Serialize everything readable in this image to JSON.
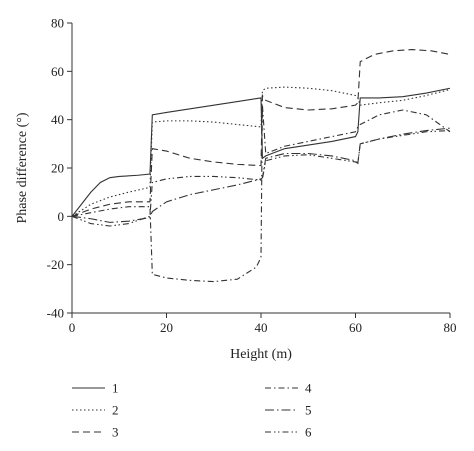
{
  "chart_data": {
    "type": "line",
    "xlabel": "Height (m)",
    "ylabel": "Phase difference (°)",
    "xlim": [
      0,
      80
    ],
    "ylim": [
      -40,
      80
    ],
    "xticks": [
      0,
      20,
      40,
      60,
      80
    ],
    "yticks": [
      -40,
      -20,
      0,
      20,
      40,
      60,
      80
    ],
    "grid": false,
    "legend_position": "bottom",
    "series": [
      {
        "name": "1",
        "dash": "solid",
        "x": [
          0,
          2,
          4,
          6,
          8,
          10,
          14,
          16.5,
          17,
          20,
          25,
          30,
          35,
          40,
          40.3,
          41,
          45,
          50,
          55,
          60,
          60.5,
          61,
          65,
          70,
          75,
          80
        ],
        "y": [
          0,
          5,
          10,
          14,
          16,
          16.5,
          17,
          17.5,
          42,
          43,
          44.5,
          46,
          47.5,
          49,
          24,
          25,
          28,
          29.5,
          31,
          33,
          35,
          49,
          49,
          49.5,
          51,
          53
        ]
      },
      {
        "name": "2",
        "dash": "dot",
        "x": [
          0,
          4,
          8,
          12,
          16.5,
          17,
          20,
          25,
          30,
          35,
          40,
          40.3,
          41,
          45,
          50,
          55,
          60,
          60.5,
          61,
          65,
          70,
          75,
          80
        ],
        "y": [
          0,
          5,
          8,
          10,
          12,
          39,
          39.5,
          39.5,
          39,
          38,
          37,
          52,
          53,
          53.5,
          53,
          52,
          50,
          49,
          46,
          47,
          48,
          50,
          52.5
        ]
      },
      {
        "name": "3",
        "dash": "dash",
        "x": [
          0,
          4,
          8,
          12,
          16.5,
          17,
          20,
          25,
          30,
          35,
          40,
          40.3,
          41,
          45,
          50,
          55,
          60,
          60.5,
          61,
          64,
          68,
          72,
          76,
          80
        ],
        "y": [
          0,
          3,
          5,
          6,
          6,
          28,
          27,
          24,
          22.5,
          21.5,
          21,
          50,
          48,
          45,
          44,
          44.5,
          46,
          47,
          64,
          67,
          68.5,
          69,
          68.5,
          67
        ]
      },
      {
        "name": "4",
        "dash": "dashdot",
        "x": [
          0,
          4,
          8,
          12,
          16.5,
          17,
          20,
          25,
          30,
          35,
          39,
          40,
          40.3,
          41,
          45,
          50,
          55,
          60,
          60.5,
          61,
          65,
          70,
          75,
          80
        ],
        "y": [
          0,
          1.5,
          3,
          4,
          4,
          -24,
          -25.5,
          -26.5,
          -27,
          -26,
          -21,
          -17,
          46,
          26,
          29,
          31,
          33,
          35,
          37,
          38,
          42,
          44,
          42,
          35
        ]
      },
      {
        "name": "5",
        "dash": "longdashdot",
        "x": [
          0,
          4,
          8,
          12,
          16.5,
          17,
          20,
          25,
          30,
          35,
          40,
          40.3,
          41,
          45,
          50,
          55,
          60,
          60.5,
          61,
          65,
          70,
          75,
          80
        ],
        "y": [
          0,
          -1,
          -2.5,
          -2,
          -0.5,
          2,
          6,
          9,
          11,
          13,
          15.5,
          16,
          24,
          26,
          26,
          25,
          23,
          22,
          30,
          32,
          34,
          35.5,
          36.5
        ]
      },
      {
        "name": "6",
        "dash": "dashdotdot",
        "x": [
          0,
          4,
          8,
          12,
          16.5,
          17,
          20,
          25,
          30,
          35,
          40,
          40.3,
          41,
          45,
          50,
          55,
          60,
          60.5,
          61,
          65,
          70,
          75,
          80
        ],
        "y": [
          0,
          -3,
          -4,
          -3,
          0,
          14,
          15.5,
          16.5,
          16.5,
          16,
          15,
          15.5,
          23,
          25,
          25.5,
          24,
          22.5,
          22,
          30,
          32,
          33.5,
          35,
          35.5
        ]
      }
    ]
  }
}
